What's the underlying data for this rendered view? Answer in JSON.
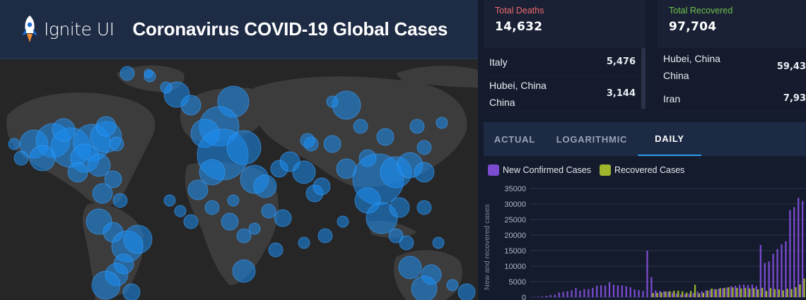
{
  "header": {
    "logo_text": "Ignite UI",
    "title": "Coronavirus COVID-19 Global Cases"
  },
  "colors": {
    "bubble": "#1a8df0",
    "deaths_label": "#f06a6a",
    "recovered_label": "#6cc24a",
    "confirmed_series": "#7b4bd0",
    "recovered_series": "#9eb52c",
    "active_tab_underline": "#2d9bf0"
  },
  "deaths": {
    "label": "Total Deaths",
    "value": "14,632",
    "rows": [
      {
        "name": "Italy",
        "value": "5,476"
      },
      {
        "name": "Hubei, China",
        "name2": "China",
        "value": "3,144"
      }
    ]
  },
  "recovered": {
    "label": "Total Recovered",
    "value": "97,704",
    "rows": [
      {
        "name": "Hubei, China",
        "name2": "China",
        "value": "59,43"
      },
      {
        "name": "Iran",
        "value": "7,93"
      }
    ]
  },
  "tabs": [
    {
      "label": "ACTUAL",
      "active": false
    },
    {
      "label": "LOGARITHMIC",
      "active": false
    },
    {
      "label": "DAILY",
      "active": true
    }
  ],
  "legend": {
    "confirmed": "New Confirmed Cases",
    "recovered": "Recovered Cases"
  },
  "chart_data": {
    "type": "bar",
    "ylabel": "New and recovered cases",
    "ylim": [
      0,
      35000
    ],
    "yticks": [
      0,
      5000,
      10000,
      15000,
      20000,
      25000,
      30000,
      35000
    ],
    "grid": true,
    "series": [
      {
        "name": "New Confirmed Cases",
        "values": [
          100,
          150,
          250,
          450,
          700,
          800,
          1500,
          1700,
          1900,
          2200,
          3000,
          2100,
          2600,
          2600,
          3000,
          3700,
          3800,
          3700,
          4800,
          4000,
          3800,
          3800,
          3500,
          3200,
          2500,
          2300,
          2000,
          15000,
          6500,
          2200,
          2000,
          1900,
          1800,
          1500,
          1200,
          900,
          1000,
          1100,
          1300,
          1800,
          1900,
          2200,
          2400,
          2600,
          2700,
          2900,
          3100,
          3600,
          3700,
          4000,
          4100,
          3900,
          4100,
          3600,
          16800,
          11000,
          11500,
          14000,
          15500,
          17000,
          18000,
          28000,
          29000,
          32000,
          31000
        ]
      },
      {
        "name": "Recovered Cases",
        "values": [
          0,
          0,
          0,
          0,
          0,
          0,
          0,
          0,
          0,
          0,
          0,
          0,
          0,
          0,
          0,
          0,
          0,
          0,
          0,
          0,
          0,
          0,
          0,
          0,
          0,
          0,
          0,
          0,
          1300,
          1400,
          1600,
          1800,
          1900,
          2100,
          2100,
          1900,
          1500,
          2000,
          4000,
          1200,
          1400,
          2100,
          2800,
          2500,
          2900,
          3000,
          3200,
          3100,
          3000,
          2800,
          3000,
          2800,
          2900,
          2500,
          3000,
          2000,
          2900,
          2600,
          2500,
          2200,
          2700,
          2600,
          3200,
          4100,
          6000
        ]
      }
    ]
  }
}
